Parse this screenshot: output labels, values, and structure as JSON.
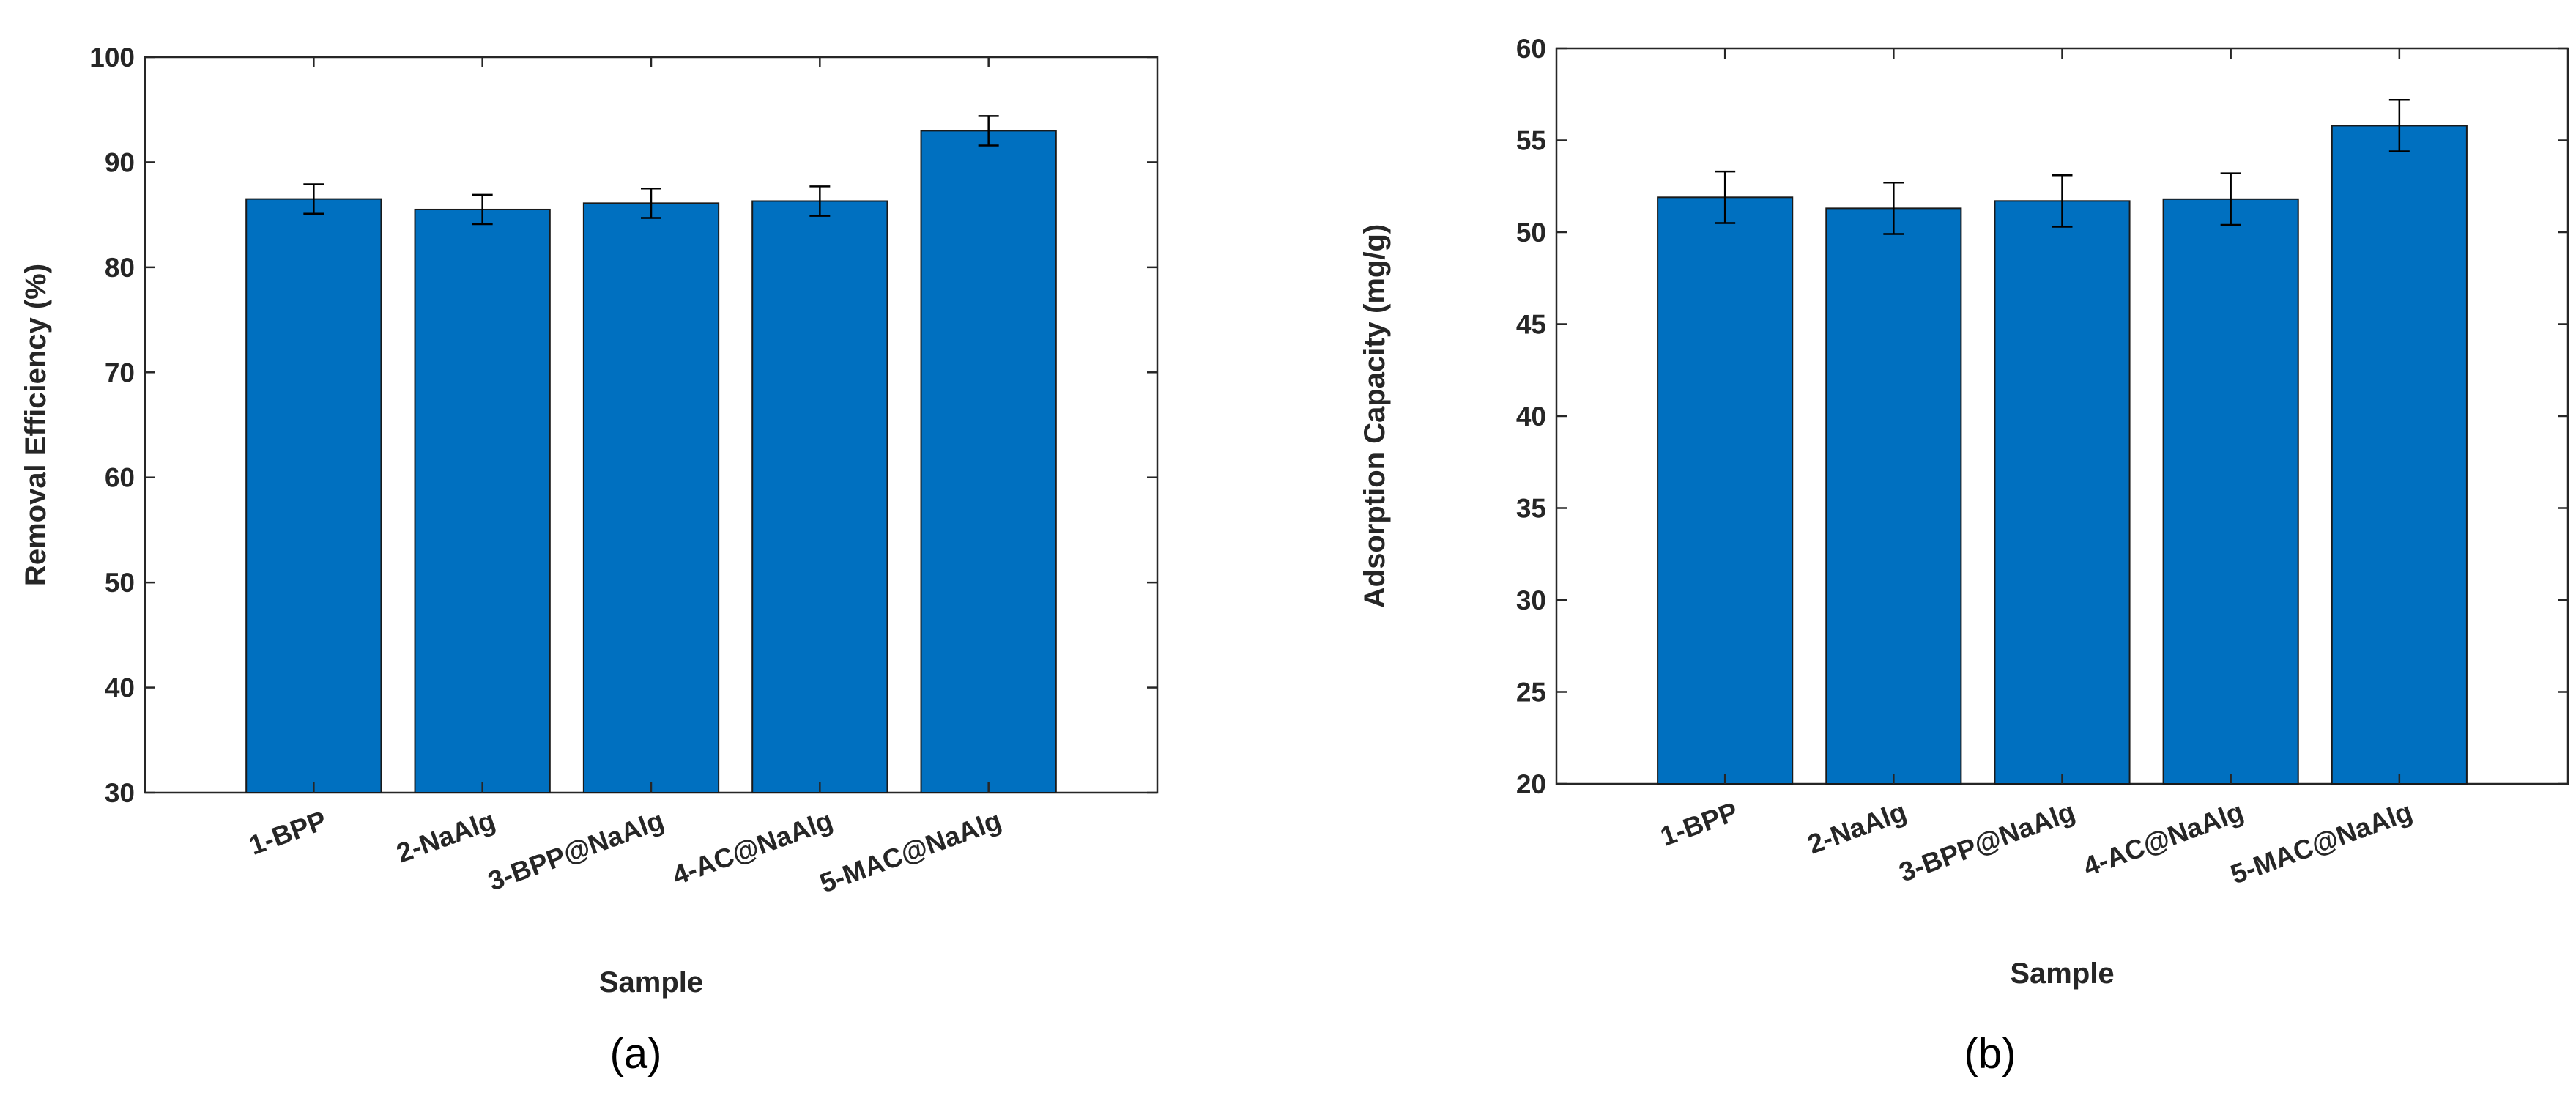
{
  "chart_data": [
    {
      "type": "bar",
      "panel_label": "(a)",
      "xlabel": "Sample",
      "ylabel": "Removal Efficiency (%)",
      "ylim": [
        30,
        100
      ],
      "yticks": [
        30,
        40,
        50,
        60,
        70,
        80,
        90,
        100
      ],
      "grid": false,
      "categories": [
        "1-BPP",
        "2-NaAlg",
        "3-BPP@NaAlg",
        "4-AC@NaAlg",
        "5-MAC@NaAlg"
      ],
      "values": [
        86.5,
        85.5,
        86.1,
        86.3,
        93.0
      ],
      "errors": [
        1.4,
        1.4,
        1.4,
        1.4,
        1.4
      ],
      "bar_color": "#0070C0"
    },
    {
      "type": "bar",
      "panel_label": "(b)",
      "xlabel": "Sample",
      "ylabel": "Adsorption Capacity (mg/g)",
      "ylim": [
        20,
        60
      ],
      "yticks": [
        20,
        25,
        30,
        35,
        40,
        45,
        50,
        55,
        60
      ],
      "grid": false,
      "categories": [
        "1-BPP",
        "2-NaAlg",
        "3-BPP@NaAlg",
        "4-AC@NaAlg",
        "5-MAC@NaAlg"
      ],
      "values": [
        51.9,
        51.3,
        51.7,
        51.8,
        55.8
      ],
      "errors": [
        1.4,
        1.4,
        1.4,
        1.4,
        1.4
      ],
      "bar_color": "#0070C0"
    }
  ]
}
